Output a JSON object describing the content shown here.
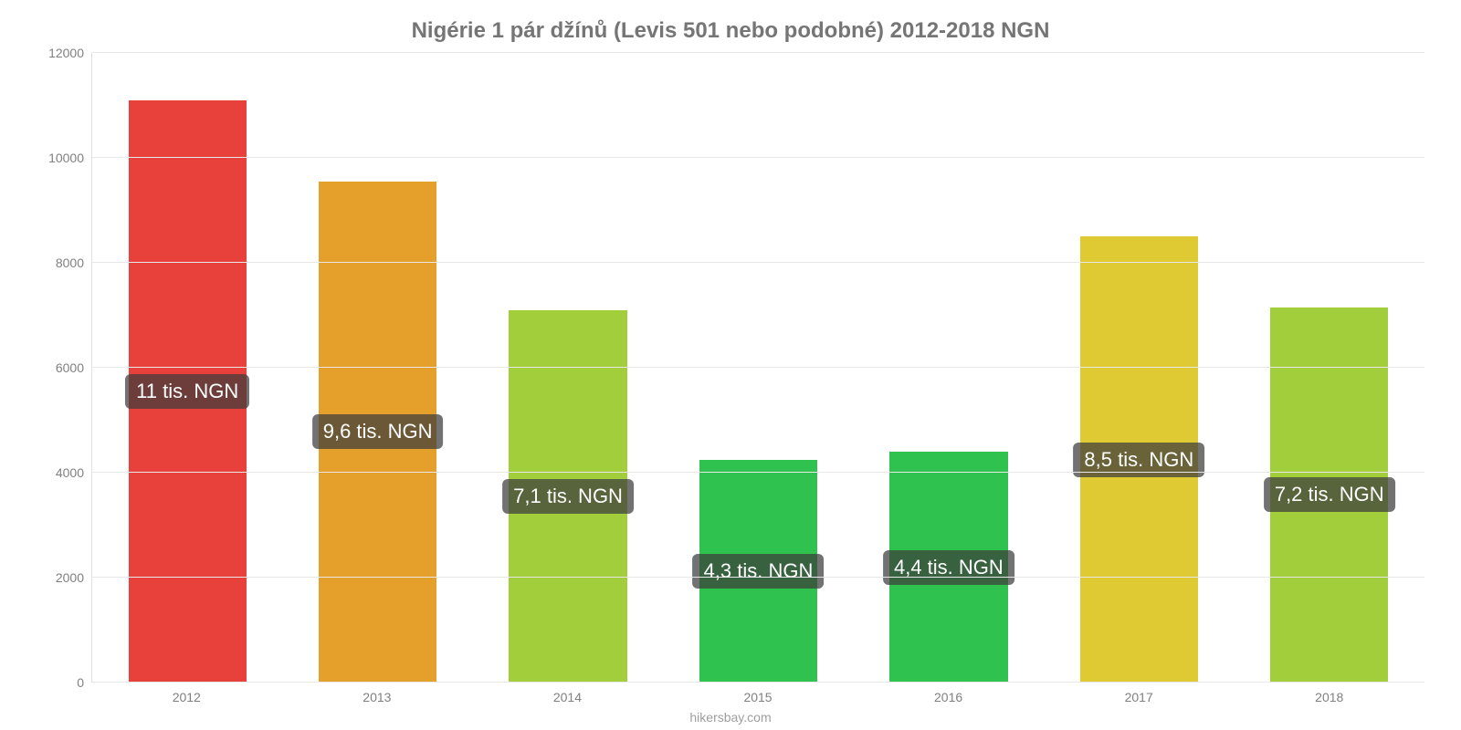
{
  "chart": {
    "type": "bar",
    "title": "Nigérie 1 pár džínů (Levis 501 nebo podobné) 2012-2018 NGN",
    "title_fontsize": 24,
    "title_color": "#757575",
    "background_color": "#ffffff",
    "grid_color": "#e8e8e8",
    "axis_color": "#bdbdbd",
    "tick_color": "#808080",
    "tick_fontsize": 14,
    "ylim_min": 0,
    "ylim_max": 12000,
    "ytick_step": 2000,
    "y_ticks": [
      {
        "value": 0,
        "label": "0"
      },
      {
        "value": 2000,
        "label": "2000"
      },
      {
        "value": 4000,
        "label": "4000"
      },
      {
        "value": 6000,
        "label": "6000"
      },
      {
        "value": 8000,
        "label": "8000"
      },
      {
        "value": 10000,
        "label": "10000"
      },
      {
        "value": 12000,
        "label": "12000"
      }
    ],
    "bar_width_pct": 62,
    "value_label_fontsize": 22,
    "value_label_bg": "rgba(60,60,60,0.72)",
    "value_label_color": "#ffffff",
    "value_label_radius": 6,
    "categories": [
      "2012",
      "2013",
      "2014",
      "2015",
      "2016",
      "2017",
      "2018"
    ],
    "bars": [
      {
        "value": 11100,
        "label": "11 tis. NGN",
        "color": "#e8403a"
      },
      {
        "value": 9550,
        "label": "9,6 tis. NGN",
        "color": "#e4a02a"
      },
      {
        "value": 7100,
        "label": "7,1 tis. NGN",
        "color": "#a2ce3b"
      },
      {
        "value": 4250,
        "label": "4,3 tis. NGN",
        "color": "#2fc24e"
      },
      {
        "value": 4400,
        "label": "4,4 tis. NGN",
        "color": "#2fc24e"
      },
      {
        "value": 8500,
        "label": "8,5 tis. NGN",
        "color": "#e0ca33"
      },
      {
        "value": 7150,
        "label": "7,2 tis. NGN",
        "color": "#a2ce3b"
      }
    ],
    "attribution": "hikersbay.com",
    "attribution_fontsize": 14,
    "attribution_color": "#9e9e9e"
  }
}
